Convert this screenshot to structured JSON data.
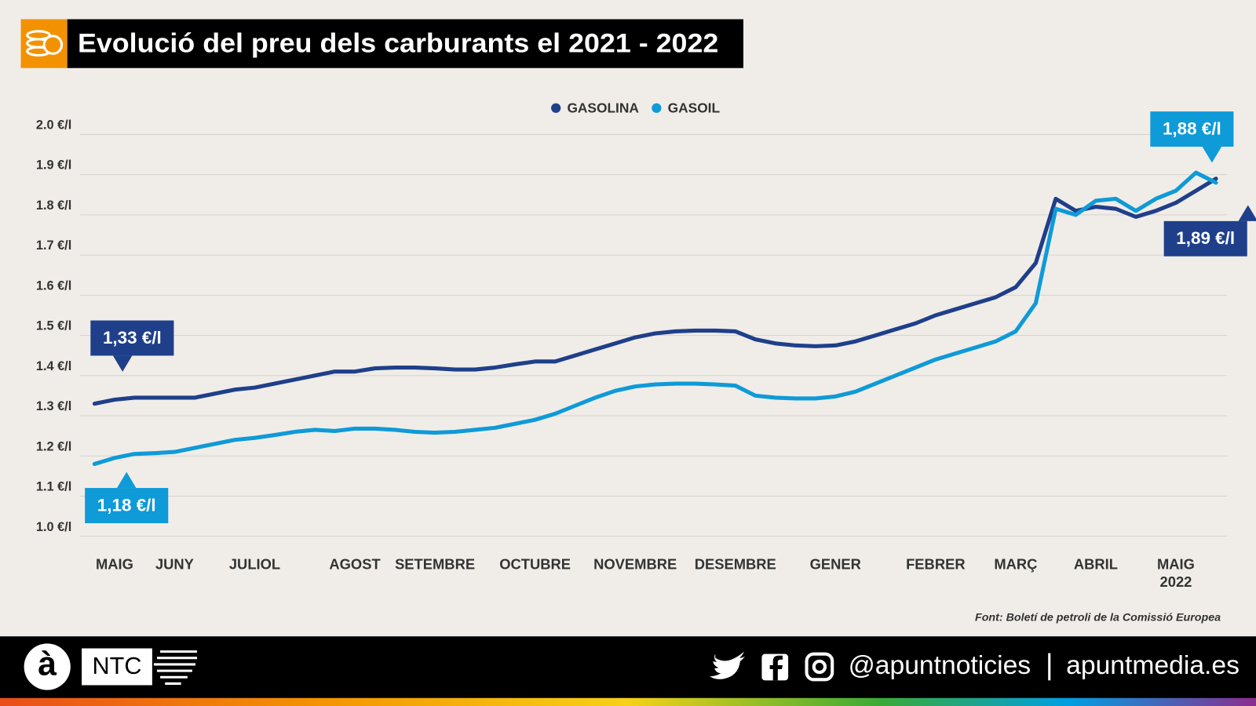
{
  "chart_data": {
    "type": "line",
    "title": "Evolució del preu dels carburants el 2021 - 2022",
    "source": "Font: Boletí de petroli de la Comissió Europea",
    "categories": [
      null,
      "MAIG",
      null,
      null,
      "JUNY",
      null,
      null,
      null,
      "JULIOL",
      null,
      null,
      null,
      null,
      "AGOST",
      null,
      null,
      null,
      "SETEMBRE",
      null,
      null,
      null,
      null,
      "OCTUBRE",
      null,
      null,
      null,
      null,
      "NOVEMBRE",
      null,
      null,
      null,
      null,
      "DESEMBRE",
      null,
      null,
      null,
      null,
      "GENER",
      null,
      null,
      null,
      null,
      "FEBRER",
      null,
      null,
      null,
      "MARÇ",
      null,
      null,
      null,
      "ABRIL",
      null,
      null,
      null,
      "MAIG\n2022",
      null,
      null
    ],
    "series": [
      {
        "name": "GASOLINA",
        "color": "#1f3f8a",
        "values": [
          1.33,
          1.34,
          1.345,
          1.345,
          1.345,
          1.345,
          1.355,
          1.365,
          1.37,
          1.38,
          1.39,
          1.4,
          1.41,
          1.41,
          1.418,
          1.42,
          1.42,
          1.418,
          1.415,
          1.415,
          1.42,
          1.428,
          1.435,
          1.435,
          1.45,
          1.465,
          1.48,
          1.495,
          1.505,
          1.51,
          1.512,
          1.512,
          1.51,
          1.49,
          1.48,
          1.475,
          1.473,
          1.475,
          1.485,
          1.5,
          1.515,
          1.53,
          1.55,
          1.565,
          1.58,
          1.595,
          1.62,
          1.68,
          1.84,
          1.81,
          1.82,
          1.815,
          1.795,
          1.81,
          1.83,
          1.86,
          1.89
        ],
        "value_labels": [
          "1,33 €/l",
          null,
          null,
          null,
          null,
          null,
          null,
          null,
          null,
          null,
          null,
          null,
          null,
          null,
          null,
          null,
          null,
          null,
          null,
          null,
          null,
          null,
          null,
          null,
          null,
          null,
          null,
          null,
          null,
          null,
          null,
          null,
          null,
          null,
          null,
          null,
          null,
          null,
          null,
          null,
          null,
          null,
          null,
          null,
          null,
          null,
          null,
          null,
          null,
          null,
          null,
          null,
          null,
          null,
          null,
          null,
          "1,89 €/l"
        ]
      },
      {
        "name": "GASOIL",
        "color": "#0f9ad8",
        "values": [
          1.18,
          1.195,
          1.205,
          1.207,
          1.21,
          1.22,
          1.23,
          1.24,
          1.245,
          1.252,
          1.26,
          1.265,
          1.262,
          1.268,
          1.268,
          1.265,
          1.26,
          1.258,
          1.26,
          1.265,
          1.27,
          1.28,
          1.29,
          1.305,
          1.325,
          1.345,
          1.362,
          1.373,
          1.378,
          1.38,
          1.38,
          1.378,
          1.375,
          1.35,
          1.345,
          1.343,
          1.343,
          1.348,
          1.36,
          1.38,
          1.4,
          1.42,
          1.44,
          1.455,
          1.47,
          1.485,
          1.51,
          1.58,
          1.815,
          1.8,
          1.835,
          1.84,
          1.81,
          1.84,
          1.86,
          1.905,
          1.88
        ],
        "value_labels": [
          "1,18 €/l",
          null,
          null,
          null,
          null,
          null,
          null,
          null,
          null,
          null,
          null,
          null,
          null,
          null,
          null,
          null,
          null,
          null,
          null,
          null,
          null,
          null,
          null,
          null,
          null,
          null,
          null,
          null,
          null,
          null,
          null,
          null,
          null,
          null,
          null,
          null,
          null,
          null,
          null,
          null,
          null,
          null,
          null,
          null,
          null,
          null,
          null,
          null,
          null,
          null,
          null,
          null,
          null,
          null,
          null,
          null,
          "1,88 €/l"
        ]
      }
    ],
    "ylim": [
      1.0,
      2.0
    ],
    "yticks": [
      {
        "value": 1.0,
        "label": "1.0 €/l"
      },
      {
        "value": 1.1,
        "label": "1.1 €/l"
      },
      {
        "value": 1.2,
        "label": "1.2 €/l"
      },
      {
        "value": 1.3,
        "label": "1.3 €/l"
      },
      {
        "value": 1.4,
        "label": "1.4 €/l"
      },
      {
        "value": 1.5,
        "label": "1.5 €/l"
      },
      {
        "value": 1.6,
        "label": "1.6 €/l"
      },
      {
        "value": 1.7,
        "label": "1.7 €/l"
      },
      {
        "value": 1.8,
        "label": "1.8 €/l"
      },
      {
        "value": 1.9,
        "label": "1.9 €/l"
      },
      {
        "value": 2.0,
        "label": "2.0 €/l"
      }
    ],
    "grid": true,
    "legend": "top"
  },
  "footer": {
    "logo": "à",
    "brand": "NTC",
    "handle": "@apuntnoticies",
    "site": "apuntmedia.es"
  }
}
